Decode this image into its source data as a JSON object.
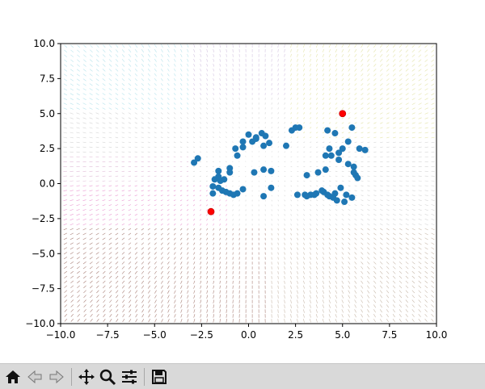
{
  "chart_data": {
    "type": "scatter",
    "title": "",
    "xlabel": "",
    "ylabel": "",
    "xlim": [
      -10,
      10
    ],
    "ylim": [
      -10,
      10
    ],
    "grid": false,
    "xticks": [
      -10.0,
      -7.5,
      -5.0,
      -2.5,
      0.0,
      2.5,
      5.0,
      7.5,
      10.0
    ],
    "yticks": [
      -10.0,
      -7.5,
      -5.0,
      -2.5,
      0.0,
      2.5,
      5.0,
      7.5,
      10.0
    ],
    "xtick_labels": [
      "−10.0",
      "−7.5",
      "−5.0",
      "−2.5",
      "0.0",
      "2.5",
      "5.0",
      "7.5",
      "10.0"
    ],
    "ytick_labels": [
      "−10.0",
      "−7.5",
      "−5.0",
      "−2.5",
      "0.0",
      "2.5",
      "5.0",
      "7.5",
      "10.0"
    ],
    "background_field": "quiver",
    "series": [
      {
        "color": "#1f77b4",
        "x": [
          -2.9,
          -2.7,
          -1.6,
          -1.0,
          -0.6,
          -0.3,
          0.2,
          0.4,
          0.7,
          0.9,
          1.1,
          0.8,
          0.4,
          0.0,
          -0.3,
          -0.7,
          -1.0,
          -1.3,
          -1.5,
          -1.8,
          -1.9,
          -1.9,
          -1.6,
          -1.4,
          -1.2,
          -1.0,
          -0.8,
          -0.6,
          -0.3,
          0.3,
          0.8,
          1.2,
          2.0,
          2.3,
          2.5,
          2.7,
          3.0,
          3.3,
          3.6,
          4.0,
          4.3,
          4.6,
          4.9,
          5.2,
          5.5,
          5.1,
          4.7,
          4.5,
          4.2,
          3.9,
          3.5,
          3.1,
          2.6,
          3.1,
          3.7,
          4.1,
          4.4,
          4.8,
          5.0,
          5.3,
          5.6,
          5.7,
          5.8,
          5.6,
          5.3,
          4.8,
          4.3,
          4.1,
          4.2,
          4.6,
          5.5,
          5.9,
          6.2,
          1.2,
          0.8,
          -1.6
        ],
        "y": [
          1.5,
          1.8,
          0.9,
          1.1,
          2.0,
          2.6,
          3.0,
          3.3,
          3.6,
          3.4,
          2.9,
          2.7,
          3.2,
          3.5,
          3.0,
          2.5,
          0.8,
          0.3,
          0.2,
          0.3,
          -0.2,
          -0.7,
          -0.3,
          -0.5,
          -0.6,
          -0.7,
          -0.8,
          -0.7,
          -0.4,
          0.8,
          1.0,
          0.9,
          2.7,
          3.8,
          4.0,
          4.0,
          -0.8,
          -0.8,
          -0.7,
          -0.6,
          -0.9,
          -0.7,
          -0.3,
          -0.8,
          -1.0,
          -1.3,
          -1.2,
          -1.0,
          -0.8,
          -0.5,
          -0.8,
          -0.9,
          -0.8,
          0.6,
          0.8,
          1.0,
          2.0,
          2.2,
          2.5,
          3.0,
          0.8,
          0.6,
          0.4,
          1.2,
          1.4,
          1.7,
          2.5,
          2.0,
          3.8,
          3.6,
          4.0,
          2.5,
          2.4,
          -0.3,
          -0.9,
          0.5
        ]
      },
      {
        "color": "#ff0000",
        "x": [
          -2.0,
          5.0
        ],
        "y": [
          -2.0,
          5.0
        ]
      }
    ]
  },
  "toolbar": {
    "buttons": [
      {
        "icon": "home-icon"
      },
      {
        "icon": "back-arrow-icon"
      },
      {
        "icon": "forward-arrow-icon"
      },
      {
        "icon": "pan-icon"
      },
      {
        "icon": "zoom-icon"
      },
      {
        "icon": "configure-subplots-icon"
      },
      {
        "icon": "save-icon"
      }
    ]
  }
}
